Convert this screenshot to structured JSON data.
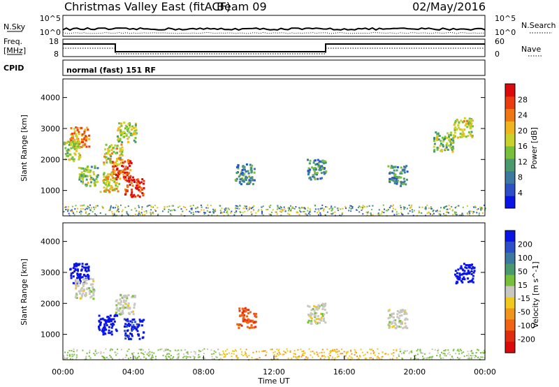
{
  "header": {
    "station": "Christmas Valley East (fitACF)",
    "beam": "Beam 09",
    "date": "02/May/2016"
  },
  "nsky_panel": {
    "left_label": "N.Sky",
    "right_label": "N.Search",
    "left_ticks": [
      "10^5",
      "10^0"
    ],
    "right_ticks": [
      "10^5",
      "10^0"
    ]
  },
  "freq_panel": {
    "left_label_line1": "Freq.",
    "left_label_line2": "[MHz]",
    "right_label": "Nave",
    "left_ticks": [
      "18",
      "8"
    ],
    "right_ticks": [
      "60",
      "0"
    ]
  },
  "cpid": {
    "label": "CPID",
    "value": "normal (fast) 151 RF"
  },
  "chart_data": [
    {
      "type": "heatmap",
      "title": "",
      "xlabel": "",
      "ylabel": "Slant Range [km]",
      "xlim": [
        0,
        24
      ],
      "ylim": [
        180,
        4600
      ],
      "y_ticks": [
        "1000",
        "2000",
        "3000",
        "4000"
      ],
      "colorbar": {
        "label": "Power [dB]",
        "ticks": [
          "4",
          "8",
          "12",
          "16",
          "20",
          "24",
          "28"
        ],
        "colors": [
          "#0a14e6",
          "#2d50c8",
          "#3c78a0",
          "#4a9a6e",
          "#78c03c",
          "#c8d22a",
          "#f0b41e",
          "#f07814",
          "#eb3c0f",
          "#dc0a0a"
        ]
      },
      "blobs": [
        {
          "t": 0.9,
          "r": 2750,
          "intensity": 0.75
        },
        {
          "t": 0.4,
          "r": 2300,
          "intensity": 0.55
        },
        {
          "t": 1.4,
          "r": 1500,
          "intensity": 0.45
        },
        {
          "t": 2.6,
          "r": 1300,
          "intensity": 0.6
        },
        {
          "t": 3.3,
          "r": 1700,
          "intensity": 0.85
        },
        {
          "t": 4.0,
          "r": 1150,
          "intensity": 0.95
        },
        {
          "t": 3.6,
          "r": 2900,
          "intensity": 0.5
        },
        {
          "t": 2.8,
          "r": 2200,
          "intensity": 0.55
        },
        {
          "t": 10.3,
          "r": 1550,
          "intensity": 0.3
        },
        {
          "t": 14.4,
          "r": 1700,
          "intensity": 0.3
        },
        {
          "t": 19.0,
          "r": 1500,
          "intensity": 0.3
        },
        {
          "t": 22.7,
          "r": 3050,
          "intensity": 0.55
        },
        {
          "t": 21.6,
          "r": 2600,
          "intensity": 0.45
        }
      ]
    },
    {
      "type": "heatmap",
      "title": "",
      "xlabel": "Time UT",
      "ylabel": "Slant Range [km]",
      "xlim": [
        0,
        24
      ],
      "ylim": [
        180,
        4600
      ],
      "x_ticks": [
        "00:00",
        "04:00",
        "08:00",
        "12:00",
        "16:00",
        "20:00",
        "00:00"
      ],
      "y_ticks": [
        "1000",
        "2000",
        "3000",
        "4000"
      ],
      "colorbar": {
        "label": "Velocity [m s^-1]",
        "ticks": [
          "200",
          "100",
          "50",
          "15",
          "-15",
          "-50",
          "-100",
          "-200"
        ],
        "colors": [
          "#0a14e6",
          "#2d50c8",
          "#3c78a0",
          "#4a9a6e",
          "#78c03c",
          "#c8c8c0",
          "#f0c81e",
          "#f0961e",
          "#f06414",
          "#e12d0f",
          "#dc0a0a"
        ]
      },
      "blobs": [
        {
          "t": 0.9,
          "r": 3000,
          "v": 180
        },
        {
          "t": 1.2,
          "r": 2500,
          "v": 0
        },
        {
          "t": 2.5,
          "r": 1350,
          "v": 180
        },
        {
          "t": 4.0,
          "r": 1200,
          "v": 160
        },
        {
          "t": 3.5,
          "r": 2000,
          "v": 0
        },
        {
          "t": 10.4,
          "r": 1560,
          "v": -140
        },
        {
          "t": 14.4,
          "r": 1700,
          "v": 0
        },
        {
          "t": 19.0,
          "r": 1500,
          "v": 0
        },
        {
          "t": 22.8,
          "r": 3000,
          "v": 190
        }
      ]
    }
  ]
}
